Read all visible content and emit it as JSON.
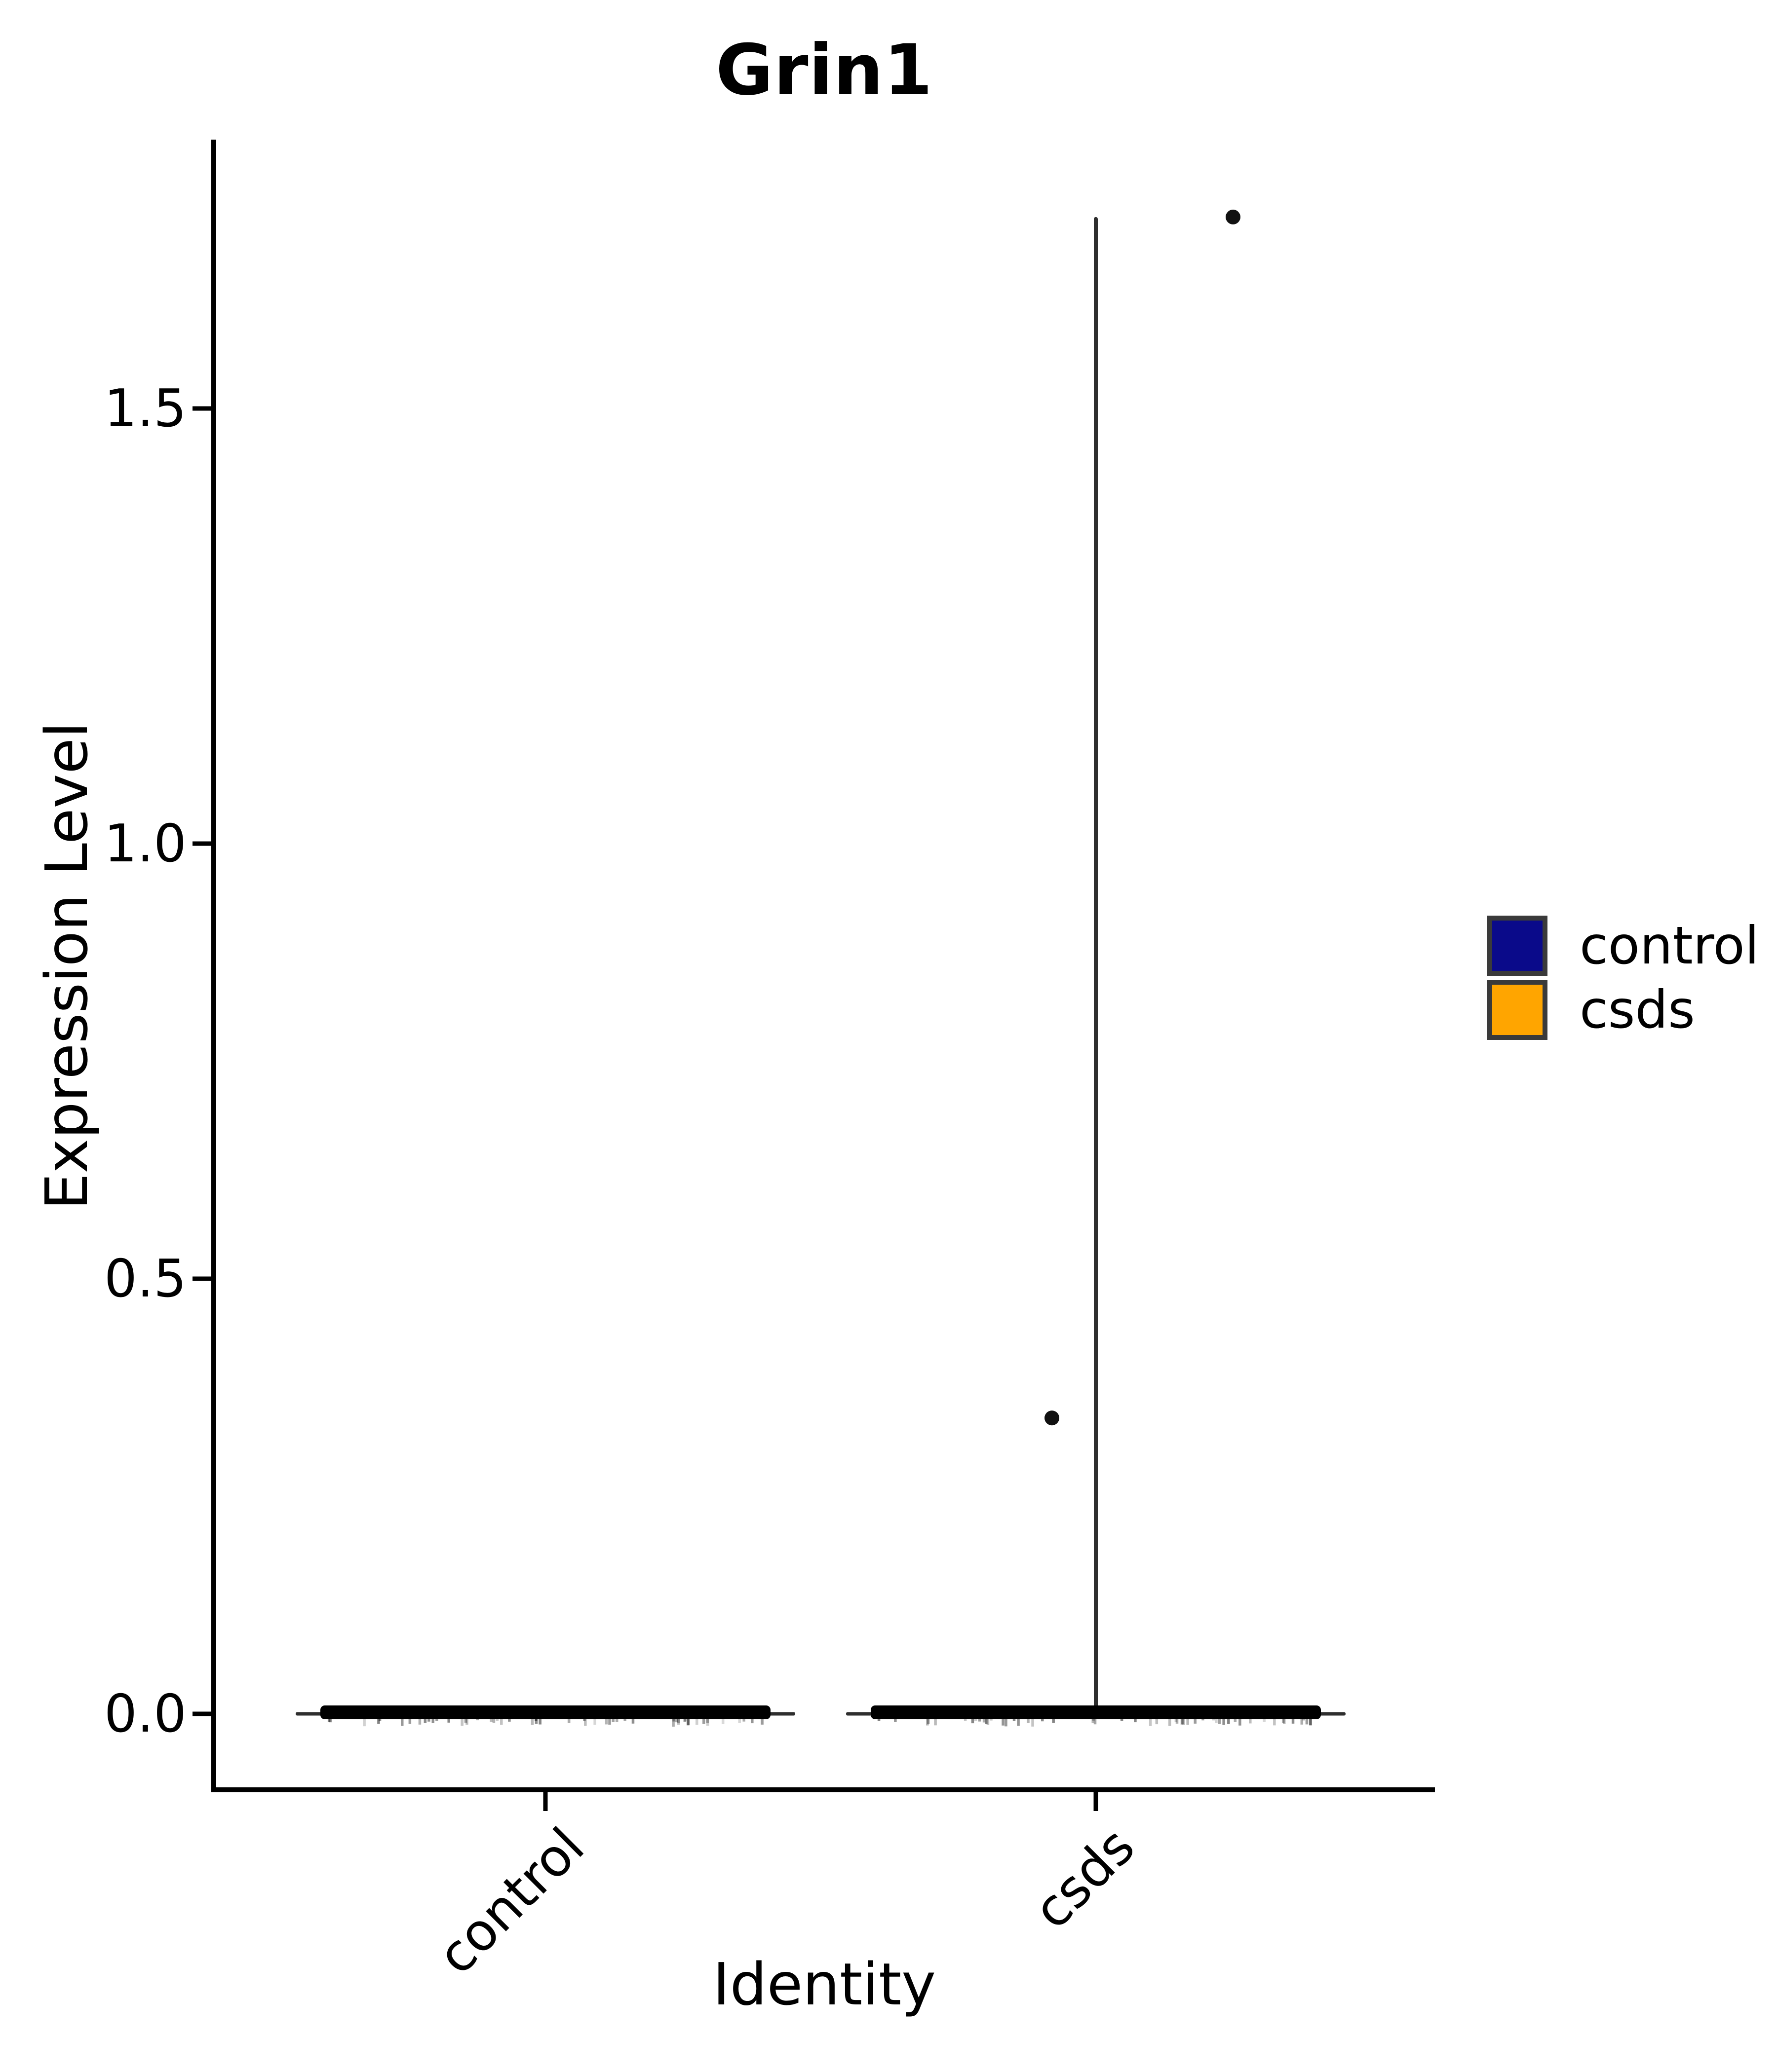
{
  "title": "Grin1",
  "axes": {
    "x_label": "Identity",
    "y_label": "Expression Level"
  },
  "legend": {
    "items": [
      {
        "label": "control",
        "color": "#0a0a8a"
      },
      {
        "label": "csds",
        "color": "#ffa500"
      }
    ]
  },
  "chart_data": {
    "type": "violin",
    "title": "Grin1",
    "xlabel": "Identity",
    "ylabel": "Expression Level",
    "categories": [
      "control",
      "csds"
    ],
    "y_ticks": [
      {
        "label": "0.0",
        "value": 0.0
      },
      {
        "label": "0.5",
        "value": 0.5
      },
      {
        "label": "1.0",
        "value": 1.0
      },
      {
        "label": "1.5",
        "value": 1.5
      }
    ],
    "ylim": [
      -0.09,
      1.81
    ],
    "grid": false,
    "legend_position": "right-center",
    "series": [
      {
        "name": "control",
        "color": "#0a0a8a",
        "violin_min": 0.0,
        "violin_max": 0.0,
        "dense_band_y": 0.0,
        "outliers": []
      },
      {
        "name": "csds",
        "color": "#ffa500",
        "violin_min": 0.0,
        "violin_max": 1.72,
        "dense_band_y": 0.0,
        "outliers": [
          {
            "x_offset": -0.08,
            "y": 0.34
          },
          {
            "x_offset": 0.25,
            "y": 1.72
          }
        ]
      }
    ]
  }
}
